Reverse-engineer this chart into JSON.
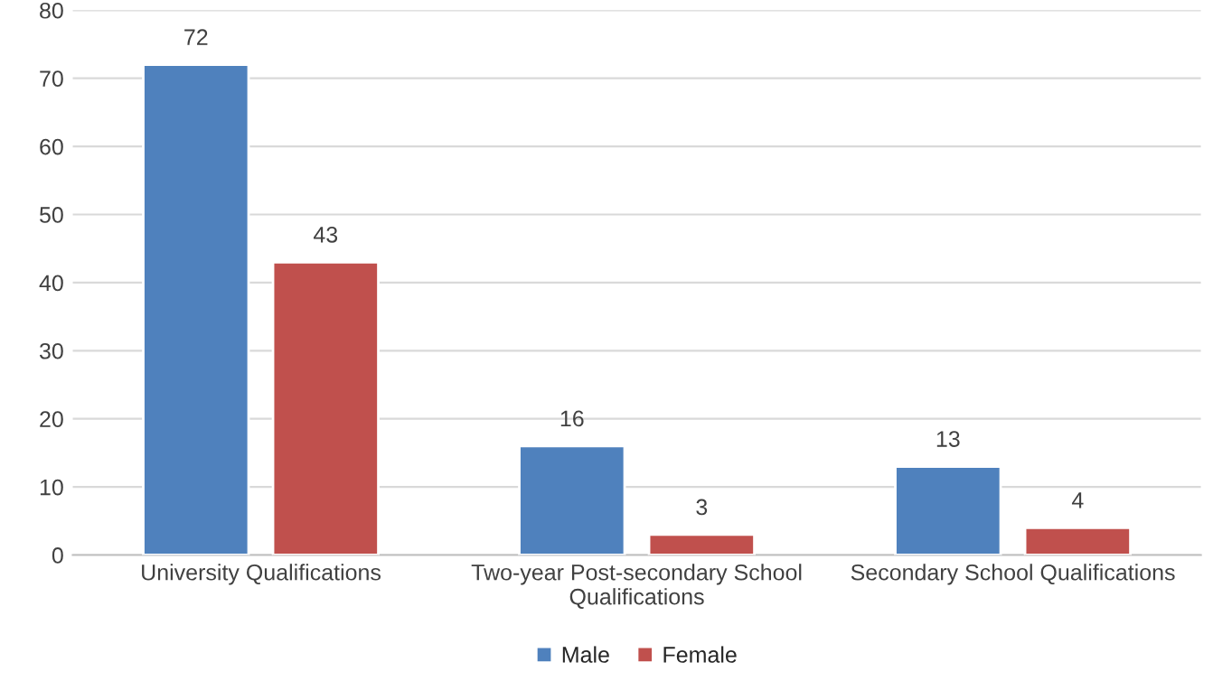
{
  "chart_data": {
    "type": "bar",
    "categories": [
      "University Qualifications",
      "Two-year Post-secondary School\nQualifications",
      "Secondary School Qualifications"
    ],
    "series": [
      {
        "name": "Male",
        "color": "#4f81bd",
        "values": [
          72,
          16,
          13
        ]
      },
      {
        "name": "Female",
        "color": "#c0504d",
        "values": [
          43,
          3,
          4
        ]
      }
    ],
    "ylim": [
      0,
      80
    ],
    "yticks": [
      0,
      10,
      20,
      30,
      40,
      50,
      60,
      70,
      80
    ],
    "grid": "y",
    "legend": "bottom",
    "data_labels": true
  }
}
